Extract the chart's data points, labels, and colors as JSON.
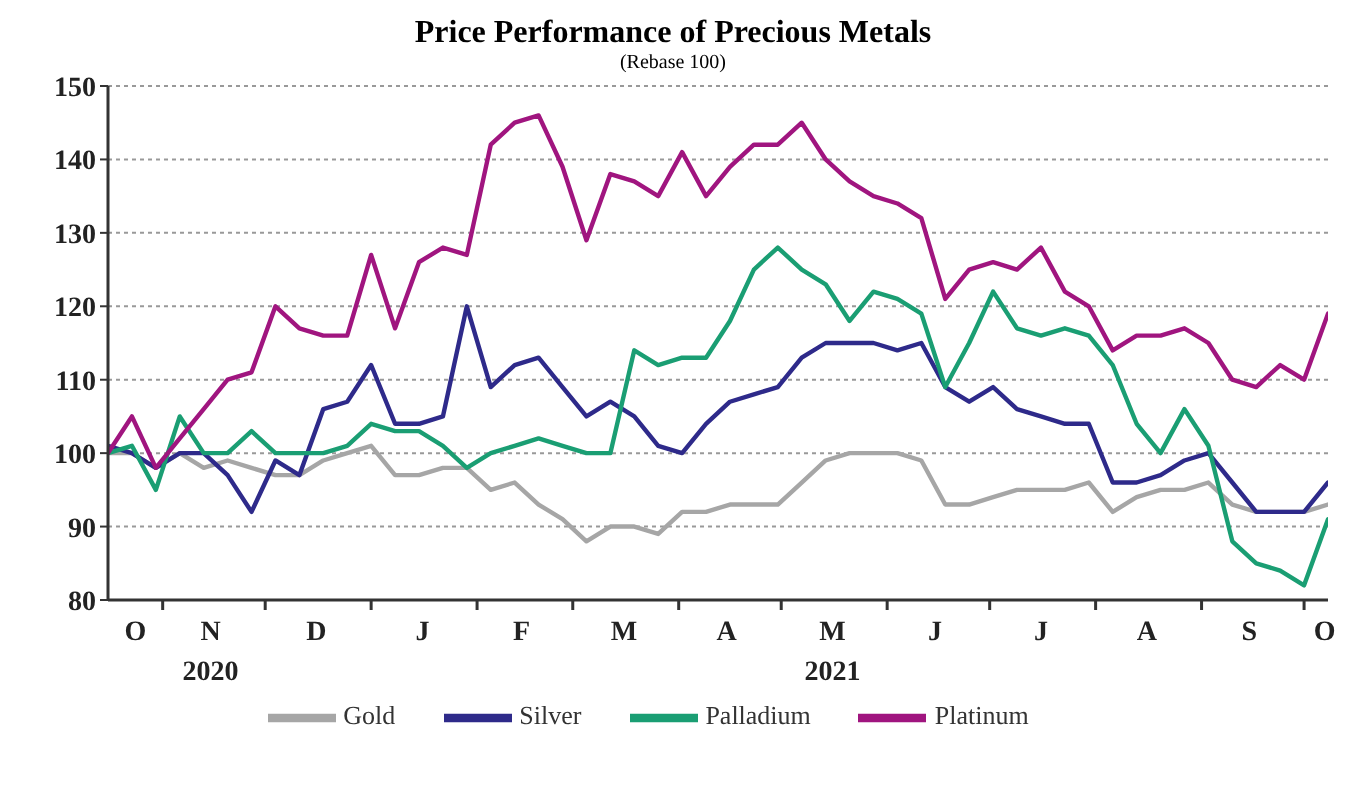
{
  "chart_data": {
    "type": "line",
    "title": "Price Performance of Precious Metals",
    "subtitle": "(Rebase 100)",
    "x": [
      "2020-10-16",
      "2020-10-23",
      "2020-10-30",
      "2020-11-06",
      "2020-11-13",
      "2020-11-20",
      "2020-11-27",
      "2020-12-04",
      "2020-12-11",
      "2020-12-18",
      "2020-12-25",
      "2021-01-01",
      "2021-01-08",
      "2021-01-15",
      "2021-01-22",
      "2021-01-29",
      "2021-02-05",
      "2021-02-12",
      "2021-02-19",
      "2021-02-26",
      "2021-03-05",
      "2021-03-12",
      "2021-03-19",
      "2021-03-26",
      "2021-04-02",
      "2021-04-09",
      "2021-04-16",
      "2021-04-23",
      "2021-04-30",
      "2021-05-07",
      "2021-05-14",
      "2021-05-21",
      "2021-05-28",
      "2021-06-04",
      "2021-06-11",
      "2021-06-18",
      "2021-06-25",
      "2021-07-02",
      "2021-07-09",
      "2021-07-16",
      "2021-07-23",
      "2021-07-30",
      "2021-08-06",
      "2021-08-13",
      "2021-08-20",
      "2021-08-27",
      "2021-09-03",
      "2021-09-10",
      "2021-09-17",
      "2021-09-24",
      "2021-10-01",
      "2021-10-08"
    ],
    "series": [
      {
        "name": "Gold",
        "color": "#a6a6a6",
        "values": [
          100,
          100,
          98,
          100,
          98,
          99,
          98,
          97,
          97,
          99,
          100,
          101,
          97,
          97,
          98,
          98,
          95,
          96,
          93,
          91,
          88,
          90,
          90,
          89,
          92,
          92,
          93,
          93,
          93,
          96,
          99,
          100,
          100,
          100,
          99,
          93,
          93,
          94,
          95,
          95,
          95,
          96,
          92,
          94,
          95,
          95,
          96,
          93,
          92,
          92,
          92,
          93
        ]
      },
      {
        "name": "Silver",
        "color": "#2e2a8a",
        "values": [
          101,
          100,
          98,
          100,
          100,
          97,
          92,
          99,
          97,
          106,
          107,
          112,
          104,
          104,
          105,
          120,
          109,
          112,
          113,
          109,
          105,
          107,
          105,
          101,
          100,
          104,
          107,
          108,
          109,
          113,
          115,
          115,
          115,
          114,
          115,
          109,
          107,
          109,
          106,
          105,
          104,
          104,
          96,
          96,
          97,
          99,
          100,
          96,
          92,
          92,
          92,
          96
        ]
      },
      {
        "name": "Palladium",
        "color": "#1a9e73",
        "values": [
          100,
          101,
          95,
          105,
          100,
          100,
          103,
          100,
          100,
          100,
          101,
          104,
          103,
          103,
          101,
          98,
          100,
          101,
          102,
          101,
          100,
          100,
          114,
          112,
          113,
          113,
          118,
          125,
          128,
          125,
          123,
          118,
          122,
          121,
          119,
          109,
          115,
          122,
          117,
          116,
          117,
          116,
          112,
          104,
          100,
          106,
          101,
          88,
          85,
          84,
          82,
          91
        ]
      },
      {
        "name": "Platinum",
        "color": "#a0157f",
        "values": [
          100,
          105,
          98,
          102,
          106,
          110,
          111,
          120,
          117,
          116,
          116,
          127,
          117,
          126,
          128,
          127,
          142,
          145,
          146,
          139,
          129,
          138,
          137,
          135,
          141,
          135,
          139,
          142,
          142,
          145,
          140,
          137,
          135,
          134,
          132,
          121,
          125,
          126,
          125,
          128,
          122,
          120,
          114,
          116,
          116,
          117,
          115,
          110,
          109,
          112,
          110,
          119
        ]
      }
    ],
    "xlim": [
      "2020-10-16",
      "2021-10-08"
    ],
    "xticks": [
      {
        "value": "2020-10-24",
        "label": "O"
      },
      {
        "value": "2020-11-01",
        "label": null
      },
      {
        "value": "2020-11-15",
        "label": "N\n2020"
      },
      {
        "value": "2020-12-01",
        "label": null
      },
      {
        "value": "2020-12-16",
        "label": "D"
      },
      {
        "value": "2021-01-01",
        "label": null
      },
      {
        "value": "2021-01-16",
        "label": "J"
      },
      {
        "value": "2021-02-01",
        "label": null
      },
      {
        "value": "2021-02-14",
        "label": "F"
      },
      {
        "value": "2021-03-01",
        "label": null
      },
      {
        "value": "2021-03-16",
        "label": "M"
      },
      {
        "value": "2021-04-01",
        "label": null
      },
      {
        "value": "2021-04-15",
        "label": "A"
      },
      {
        "value": "2021-05-01",
        "label": null
      },
      {
        "value": "2021-05-16",
        "label": "M\n2021"
      },
      {
        "value": "2021-06-01",
        "label": null
      },
      {
        "value": "2021-06-15",
        "label": "J"
      },
      {
        "value": "2021-07-01",
        "label": null
      },
      {
        "value": "2021-07-16",
        "label": "J"
      },
      {
        "value": "2021-08-01",
        "label": null
      },
      {
        "value": "2021-08-16",
        "label": "A"
      },
      {
        "value": "2021-09-01",
        "label": null
      },
      {
        "value": "2021-09-15",
        "label": "S"
      },
      {
        "value": "2021-10-01",
        "label": null
      },
      {
        "value": "2021-10-07",
        "label": "O"
      }
    ],
    "ylim": [
      80,
      150
    ],
    "yticks": [
      80,
      90,
      100,
      110,
      120,
      130,
      140,
      150
    ],
    "grid": "y",
    "legend": "bottom",
    "marker": "none",
    "line_style": "solid"
  }
}
